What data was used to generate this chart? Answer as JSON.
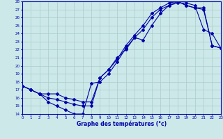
{
  "xlabel": "Graphe des températures (°c)",
  "ylim": [
    14,
    28
  ],
  "xlim": [
    0,
    23
  ],
  "yticks": [
    14,
    15,
    16,
    17,
    18,
    19,
    20,
    21,
    22,
    23,
    24,
    25,
    26,
    27,
    28
  ],
  "xticks": [
    0,
    1,
    2,
    3,
    4,
    5,
    6,
    7,
    8,
    9,
    10,
    11,
    12,
    13,
    14,
    15,
    16,
    17,
    18,
    19,
    20,
    21,
    22,
    23
  ],
  "bg_color": "#cce8e8",
  "line_color": "#0000aa",
  "grid_color": "#aacccc",
  "series1_x": [
    0,
    1,
    2,
    3,
    4,
    5,
    6,
    7,
    8,
    9,
    10,
    11,
    12,
    13,
    14,
    15,
    16,
    17,
    18,
    19,
    20,
    21,
    22,
    23
  ],
  "series1_y": [
    17.5,
    17.0,
    16.5,
    15.5,
    15.0,
    14.5,
    14.0,
    14.0,
    17.8,
    18.0,
    19.0,
    20.5,
    22.2,
    23.5,
    23.2,
    25.0,
    26.5,
    27.5,
    27.8,
    27.8,
    27.5,
    24.5,
    24.0,
    22.2
  ],
  "series2_x": [
    0,
    1,
    2,
    3,
    4,
    5,
    6,
    7,
    8,
    9,
    10,
    11,
    12,
    13,
    14,
    15,
    16,
    17,
    18,
    19,
    20,
    21,
    22,
    23
  ],
  "series2_y": [
    17.5,
    17.0,
    16.5,
    16.0,
    15.8,
    15.5,
    15.2,
    15.0,
    15.0,
    18.5,
    19.5,
    20.8,
    22.5,
    23.8,
    25.0,
    26.5,
    27.2,
    27.8,
    28.0,
    27.5,
    27.2,
    27.2,
    22.5,
    22.2
  ],
  "series3_x": [
    0,
    1,
    2,
    3,
    4,
    5,
    6,
    7,
    8,
    9,
    10,
    11,
    12,
    13,
    14,
    15,
    16,
    17,
    18,
    19,
    20,
    21,
    22,
    23
  ],
  "series3_y": [
    17.5,
    17.0,
    16.5,
    16.5,
    16.5,
    16.0,
    15.8,
    15.5,
    15.5,
    18.5,
    19.5,
    21.0,
    22.0,
    23.5,
    24.5,
    26.0,
    27.0,
    27.5,
    28.0,
    27.5,
    27.2,
    27.0,
    22.5,
    22.2
  ]
}
